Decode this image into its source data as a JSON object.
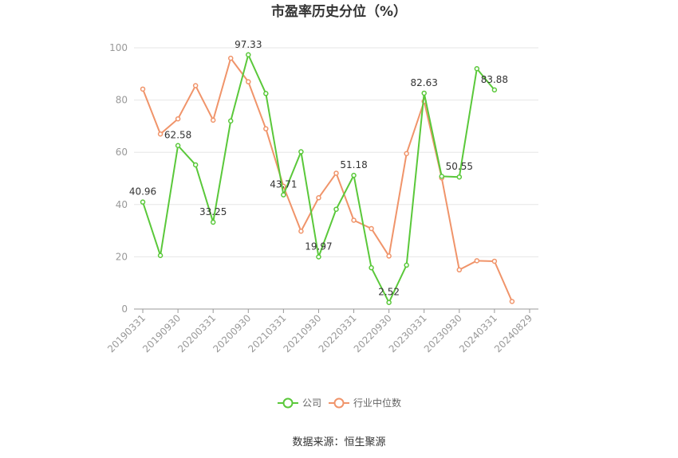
{
  "chart_data": {
    "type": "line",
    "title": "市盈率历史分位（%）",
    "source": "数据来源：恒生聚源",
    "xlabel": "",
    "ylabel": "",
    "ylim": [
      0,
      100
    ],
    "yticks": [
      0,
      20,
      40,
      60,
      80,
      100
    ],
    "grid": true,
    "legend_position": "bottom",
    "x": [
      "20190331",
      "20190630",
      "20190930",
      "20191231",
      "20200331",
      "20200630",
      "20200930",
      "20201231",
      "20210331",
      "20210630",
      "20210930",
      "20211231",
      "20220331",
      "20220630",
      "20220930",
      "20221231",
      "20230331",
      "20230630",
      "20230930",
      "20231231",
      "20240331",
      "20240630",
      "20240829"
    ],
    "tick_labels": [
      "20190331",
      "20190930",
      "20200331",
      "20200930",
      "20210331",
      "20210930",
      "20220331",
      "20220930",
      "20230331",
      "20230930",
      "20240331",
      "20240829"
    ],
    "series": [
      {
        "name": "公司",
        "color": "#5ac83a",
        "values": [
          40.96,
          20.5,
          62.58,
          55.2,
          33.25,
          72.0,
          97.33,
          82.5,
          43.71,
          60.2,
          19.97,
          38.2,
          51.18,
          15.8,
          2.52,
          16.8,
          82.63,
          50.8,
          50.55,
          92.0,
          83.88,
          null,
          null
        ]
      },
      {
        "name": "行业中位数",
        "color": "#f0946a",
        "values": [
          84.2,
          67.0,
          72.8,
          85.5,
          72.3,
          96.0,
          87.0,
          69.0,
          47.0,
          29.8,
          42.6,
          52.0,
          34.0,
          30.8,
          20.3,
          59.5,
          79.5,
          50.2,
          15.0,
          18.5,
          18.3,
          2.9,
          null
        ]
      }
    ],
    "data_labels": [
      {
        "series": 0,
        "index": 0,
        "text": "40.96"
      },
      {
        "series": 0,
        "index": 2,
        "text": "62.58"
      },
      {
        "series": 0,
        "index": 4,
        "text": "33.25"
      },
      {
        "series": 0,
        "index": 6,
        "text": "97.33"
      },
      {
        "series": 0,
        "index": 8,
        "text": "43.71"
      },
      {
        "series": 0,
        "index": 10,
        "text": "19.97"
      },
      {
        "series": 0,
        "index": 12,
        "text": "51.18"
      },
      {
        "series": 0,
        "index": 14,
        "text": "2.52"
      },
      {
        "series": 0,
        "index": 16,
        "text": "82.63"
      },
      {
        "series": 0,
        "index": 18,
        "text": "50.55"
      },
      {
        "series": 0,
        "index": 20,
        "text": "83.88"
      }
    ]
  }
}
